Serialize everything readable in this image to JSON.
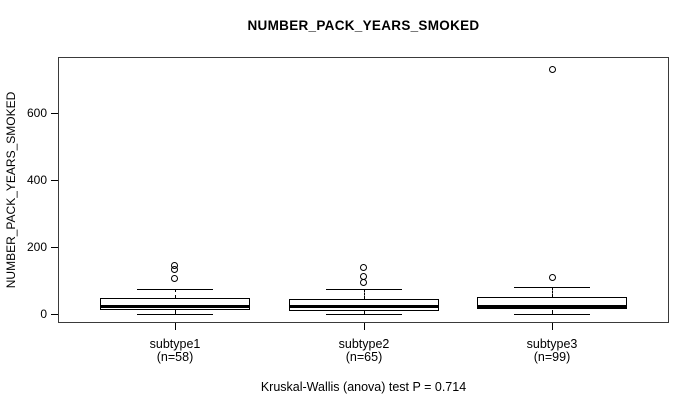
{
  "title": "NUMBER_PACK_YEARS_SMOKED",
  "caption": "Kruskal-Wallis (anova) test P = 0.714",
  "colors": {
    "axis": "#000000",
    "box_border": "#000000",
    "box_fill": "#ffffff",
    "background": "#ffffff"
  },
  "chart_data": {
    "type": "boxplot",
    "title": "NUMBER_PACK_YEARS_SMOKED",
    "ylabel": "NUMBER_PACK_YEARS_SMOKED",
    "xlabel": "",
    "yticks": [
      0,
      200,
      400,
      600
    ],
    "ylim": [
      -27,
      766
    ],
    "grid": false,
    "categories": [
      "subtype1",
      "subtype2",
      "subtype3"
    ],
    "sublabels": [
      "(n=58)",
      "(n=65)",
      "(n=99)"
    ],
    "footnote": "Kruskal-Wallis (anova) test P = 0.714",
    "series": [
      {
        "name": "subtype1",
        "n": 58,
        "whisker_low": 0,
        "q1": 12,
        "median": 25,
        "q3": 47,
        "whisker_high": 73,
        "outliers": [
          105,
          133,
          145
        ]
      },
      {
        "name": "subtype2",
        "n": 65,
        "whisker_low": 0,
        "q1": 10,
        "median": 24,
        "q3": 45,
        "whisker_high": 74,
        "outliers": [
          93,
          113,
          137
        ]
      },
      {
        "name": "subtype3",
        "n": 99,
        "whisker_low": 0,
        "q1": 13,
        "median": 24,
        "q3": 50,
        "whisker_high": 80,
        "outliers": [
          108,
          730
        ]
      }
    ]
  }
}
